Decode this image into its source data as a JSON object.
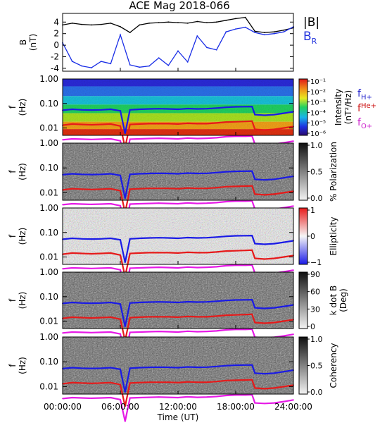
{
  "title": "ACE Mag 2018-066",
  "xlabel": "Time (UT)",
  "x_ticks": [
    "00:00:00",
    "06:00:00",
    "12:00:00",
    "18:00:00",
    "24:00:00"
  ],
  "legend_top": {
    "b_label": "|B|",
    "br_label": "B",
    "br_sub": "R"
  },
  "legend_lines": [
    {
      "label": "f",
      "sub": "H+",
      "color": "#2222cc"
    },
    {
      "label": "f",
      "sup": "He+",
      "color": "#cc1111"
    },
    {
      "label": "f",
      "sub": "O+",
      "color": "#cc22cc"
    }
  ],
  "colors": {
    "b_mag": "#000000",
    "b_r": "#1a2ee6",
    "f_h": "#1a1ae6",
    "f_he": "#e61a1a",
    "f_o": "#e61ae6"
  },
  "panels": [
    {
      "id": "b",
      "ylabel": "B",
      "ylabel2": "(nT)",
      "y_ticks": [
        "4",
        "2",
        "0",
        "-2",
        "-4"
      ]
    },
    {
      "id": "intensity",
      "ylabel": "f",
      "ylabel2": "(Hz)",
      "y_ticks": [
        "1.00",
        "0.10",
        "0.01"
      ],
      "cb_label": "Intensity",
      "cb_label2": "(nT²/Hz)",
      "cb_ticks": [
        "10⁻¹",
        "10⁻²",
        "10⁻³",
        "10⁻⁴",
        "10⁻⁵",
        "10⁻⁶"
      ]
    },
    {
      "id": "polarization",
      "ylabel": "f",
      "ylabel2": "(Hz)",
      "y_ticks": [
        "1.00",
        "0.10",
        "0.01"
      ],
      "cb_label": "% Polarization",
      "cb_ticks": [
        "1.0",
        "0.5",
        "0.0"
      ]
    },
    {
      "id": "ellipticity",
      "ylabel": "f",
      "ylabel2": "(Hz)",
      "y_ticks": [
        "1.00",
        "0.10",
        "0.01"
      ],
      "cb_label": "Ellipticity",
      "cb_ticks": [
        "1",
        "0",
        "−1"
      ]
    },
    {
      "id": "kdotb",
      "ylabel": "f",
      "ylabel2": "(Hz)",
      "y_ticks": [
        "1.00",
        "0.10",
        "0.01"
      ],
      "cb_label": "k dot B",
      "cb_label2": "(Deg)",
      "cb_ticks": [
        "90",
        "60",
        "30",
        "0"
      ]
    },
    {
      "id": "coherency",
      "ylabel": "f",
      "ylabel2": "(Hz)",
      "y_ticks": [
        "1.00",
        "0.10",
        "0.01"
      ],
      "cb_label": "Coherency",
      "cb_ticks": [
        "1.0",
        "0.5",
        "0.0"
      ]
    }
  ],
  "chart_data": [
    {
      "type": "line",
      "title": "ACE Mag 2018-066",
      "xlabel": "Time (UT)",
      "ylabel": "B (nT)",
      "xlim": [
        0,
        24
      ],
      "ylim": [
        -4.5,
        5.5
      ],
      "x": [
        0,
        1,
        2,
        3,
        4,
        5,
        6,
        7,
        8,
        9,
        10,
        11,
        12,
        13,
        14,
        15,
        16,
        17,
        18,
        19,
        20,
        21,
        22,
        23,
        24
      ],
      "series": [
        {
          "name": "|B|",
          "values": [
            3.5,
            3.8,
            3.6,
            3.5,
            3.6,
            3.8,
            3.2,
            2.2,
            3.5,
            3.8,
            3.9,
            4.0,
            3.9,
            3.8,
            4.1,
            3.9,
            4.0,
            4.3,
            4.6,
            4.8,
            2.4,
            2.2,
            2.3,
            2.6,
            3.0
          ]
        },
        {
          "name": "B_R",
          "values": [
            0.4,
            -2.8,
            -3.6,
            -3.9,
            -2.8,
            -3.2,
            1.8,
            -3.4,
            -3.8,
            -3.6,
            -2.2,
            -3.5,
            -1.0,
            -2.9,
            1.6,
            -0.4,
            -0.8,
            2.3,
            2.8,
            3.1,
            2.2,
            1.8,
            2.0,
            2.3,
            3.2
          ]
        }
      ]
    },
    {
      "type": "heatmap",
      "name": "Intensity",
      "xlim": [
        0,
        24
      ],
      "ylim": [
        0.005,
        1
      ],
      "y_scale": "log",
      "zlim": [
        1e-06,
        0.1
      ],
      "z_scale": "log"
    },
    {
      "type": "heatmap",
      "name": "% Polarization",
      "xlim": [
        0,
        24
      ],
      "ylim": [
        0.005,
        1
      ],
      "y_scale": "log",
      "zlim": [
        0,
        1
      ]
    },
    {
      "type": "heatmap",
      "name": "Ellipticity",
      "xlim": [
        0,
        24
      ],
      "ylim": [
        0.005,
        1
      ],
      "y_scale": "log",
      "zlim": [
        -1,
        1
      ]
    },
    {
      "type": "heatmap",
      "name": "k dot B",
      "xlim": [
        0,
        24
      ],
      "ylim": [
        0.005,
        1
      ],
      "y_scale": "log",
      "zlim": [
        0,
        90
      ]
    },
    {
      "type": "heatmap",
      "name": "Coherency",
      "xlim": [
        0,
        24
      ],
      "ylim": [
        0.005,
        1
      ],
      "y_scale": "log",
      "zlim": [
        0,
        1
      ]
    },
    {
      "type": "line",
      "name": "gyrofrequencies",
      "x": [
        0,
        1,
        2,
        3,
        4,
        5,
        6,
        6.5,
        7,
        8,
        9,
        10,
        11,
        12,
        13,
        14,
        15,
        16,
        17,
        18,
        19,
        19.7,
        20,
        21,
        22,
        23,
        24
      ],
      "series": [
        {
          "name": "H+",
          "values": [
            0.053,
            0.058,
            0.055,
            0.054,
            0.055,
            0.058,
            0.05,
            0.006,
            0.055,
            0.058,
            0.06,
            0.061,
            0.06,
            0.058,
            0.062,
            0.06,
            0.061,
            0.065,
            0.07,
            0.073,
            0.074,
            0.075,
            0.035,
            0.033,
            0.035,
            0.04,
            0.046
          ]
        },
        {
          "name": "He+",
          "values": [
            0.013,
            0.0145,
            0.014,
            0.0135,
            0.014,
            0.0145,
            0.012,
            0.0016,
            0.014,
            0.0145,
            0.015,
            0.015,
            0.015,
            0.0145,
            0.0155,
            0.015,
            0.015,
            0.016,
            0.0175,
            0.018,
            0.0185,
            0.019,
            0.0088,
            0.0082,
            0.0088,
            0.01,
            0.0115
          ]
        },
        {
          "name": "O+",
          "values": [
            0.0033,
            0.0036,
            0.0035,
            0.0034,
            0.0035,
            0.0036,
            0.003,
            0.0004,
            0.0035,
            0.0036,
            0.0037,
            0.0038,
            0.0037,
            0.0036,
            0.0039,
            0.0037,
            0.0038,
            0.004,
            0.0044,
            0.0046,
            0.0046,
            0.0047,
            0.0022,
            0.0021,
            0.0022,
            0.0025,
            0.0029
          ]
        }
      ]
    }
  ]
}
